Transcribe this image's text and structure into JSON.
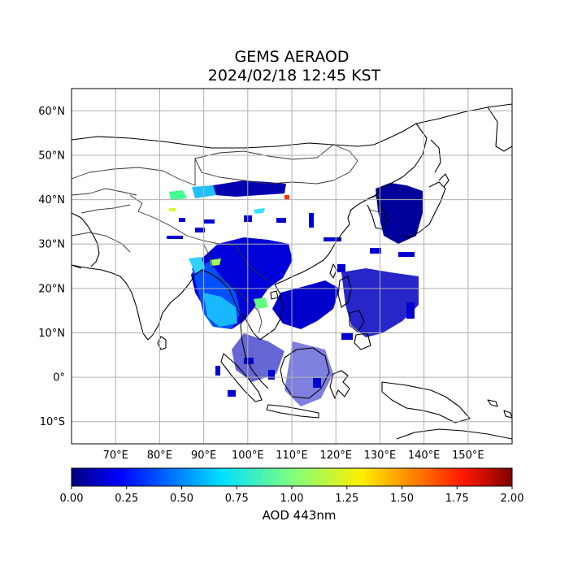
{
  "title": {
    "line1": "GEMS AERAOD",
    "line2": "2024/02/18 12:45 KST"
  },
  "map": {
    "lon_range": [
      60,
      160
    ],
    "lat_range": [
      -15,
      65
    ],
    "lat_ticks": [
      {
        "value": 60,
        "label": "60°N"
      },
      {
        "value": 50,
        "label": "50°N"
      },
      {
        "value": 40,
        "label": "40°N"
      },
      {
        "value": 30,
        "label": "30°N"
      },
      {
        "value": 20,
        "label": "20°N"
      },
      {
        "value": 10,
        "label": "10°N"
      },
      {
        "value": 0,
        "label": "0°"
      },
      {
        "value": -10,
        "label": "10°S"
      }
    ],
    "lon_ticks": [
      {
        "value": 70,
        "label": "70°E"
      },
      {
        "value": 80,
        "label": "80°E"
      },
      {
        "value": 90,
        "label": "90°E"
      },
      {
        "value": 100,
        "label": "100°E"
      },
      {
        "value": 110,
        "label": "110°E"
      },
      {
        "value": 120,
        "label": "120°E"
      },
      {
        "value": 130,
        "label": "130°E"
      },
      {
        "value": 140,
        "label": "140°E"
      },
      {
        "value": 150,
        "label": "150°E"
      }
    ],
    "grid": true
  },
  "colorbar": {
    "min": 0.0,
    "max": 2.0,
    "ticks": [
      "0.00",
      "0.25",
      "0.50",
      "0.75",
      "1.00",
      "1.25",
      "1.50",
      "1.75",
      "2.00"
    ],
    "label": "AOD 443nm",
    "colormap": [
      "#00007f",
      "#0000ff",
      "#0080ff",
      "#00ffff",
      "#80ff80",
      "#ffff00",
      "#ff8000",
      "#ff0000",
      "#7f0000"
    ]
  }
}
